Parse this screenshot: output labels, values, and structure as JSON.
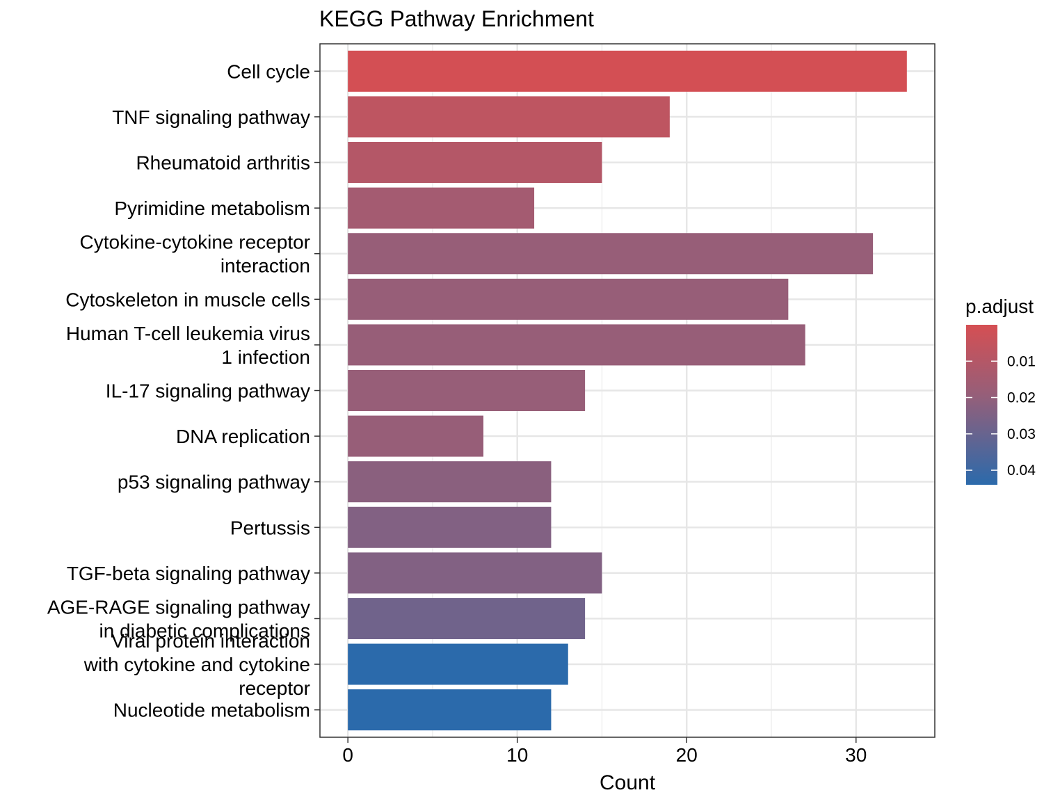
{
  "chart_data": {
    "type": "bar",
    "orientation": "horizontal",
    "title": "KEGG Pathway Enrichment",
    "xlabel": "Count",
    "ylabel": "",
    "xlim": [
      -1.65,
      34.65
    ],
    "xticks": [
      0,
      10,
      20,
      30
    ],
    "grid": true,
    "categories": [
      [
        "Cell cycle"
      ],
      [
        "TNF signaling pathway"
      ],
      [
        "Rheumatoid arthritis"
      ],
      [
        "Pyrimidine metabolism"
      ],
      [
        "Cytokine-cytokine receptor",
        "interaction"
      ],
      [
        "Cytoskeleton in muscle cells"
      ],
      [
        "Human T-cell leukemia virus",
        "1 infection"
      ],
      [
        "IL-17 signaling pathway"
      ],
      [
        "DNA replication"
      ],
      [
        "p53 signaling pathway"
      ],
      [
        "Pertussis"
      ],
      [
        "TGF-beta signaling pathway"
      ],
      [
        "AGE-RAGE signaling pathway",
        "in diabetic complications"
      ],
      [
        "Viral protein interaction",
        "with cytokine and cytokine",
        "receptor"
      ],
      [
        "Nucleotide metabolism"
      ]
    ],
    "values": [
      33,
      19,
      15,
      11,
      31,
      26,
      27,
      14,
      8,
      12,
      12,
      15,
      14,
      13,
      12
    ],
    "p_adjust": [
      0.0005,
      0.007,
      0.01,
      0.015,
      0.019,
      0.019,
      0.019,
      0.019,
      0.019,
      0.022,
      0.024,
      0.024,
      0.028,
      0.044,
      0.044
    ],
    "legend": {
      "title": "p.adjust",
      "position": "right",
      "ticks": [
        0.01,
        0.02,
        0.03,
        0.04
      ],
      "range": [
        0.0,
        0.044
      ],
      "color_low": "#d54f53",
      "color_mid": "#945f7a",
      "color_high": "#2b6aab"
    }
  }
}
